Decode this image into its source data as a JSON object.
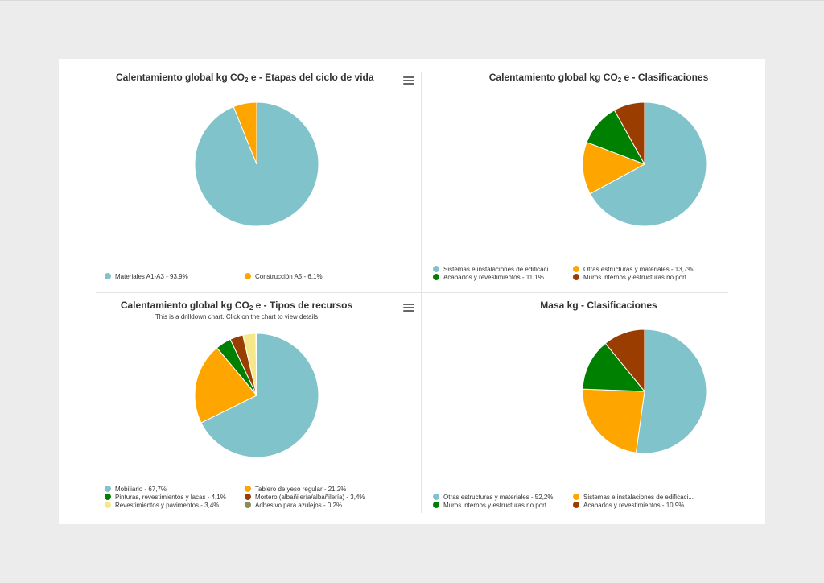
{
  "colors": {
    "teal": "#80c3ca",
    "orange": "#ffa500",
    "green": "#008000",
    "brown": "#a0400b",
    "yellow": "#f5e88a",
    "olive": "#8c8c55"
  },
  "chart_data": [
    {
      "type": "pie",
      "title_main": "Calentamiento global kg CO",
      "title_sub": "2",
      "title_rest": " e - Etapas del ciclo de vida",
      "slices": [
        {
          "label": "Materiales A1-A3 - 93,9%",
          "value": 93.9,
          "color": "#80c3ca"
        },
        {
          "label": "Construcción A5 - 6,1%",
          "value": 6.1,
          "color": "#ffa500"
        }
      ],
      "legend": "bottom"
    },
    {
      "type": "pie",
      "title_main": "Calentamiento global kg CO",
      "title_sub": "2",
      "title_rest": " e - Clasificaciones",
      "slices": [
        {
          "label": "Sistemas e instalaciones de edificaci...",
          "value": 67.1,
          "color": "#80c3ca"
        },
        {
          "label": "Otras estructuras y materiales - 13,7%",
          "value": 13.7,
          "color": "#ffa500"
        },
        {
          "label": "Acabados y revestimientos - 11,1%",
          "value": 11.1,
          "color": "#008000"
        },
        {
          "label": "Muros internos y estructuras no port...",
          "value": 8.1,
          "color": "#993d00"
        }
      ],
      "legend": "bottom"
    },
    {
      "type": "pie",
      "title_main": "Calentamiento global kg CO",
      "title_sub": "2",
      "title_rest": " e - Tipos de recursos",
      "subtitle": "This is a drilldown chart. Click on the chart to view details",
      "slices": [
        {
          "label": "Mobiliario - 67,7%",
          "value": 67.7,
          "color": "#80c3ca"
        },
        {
          "label": "Tablero de yeso regular - 21,2%",
          "value": 21.2,
          "color": "#ffa500"
        },
        {
          "label": "Pinturas, revestimientos y lacas - 4,1%",
          "value": 4.1,
          "color": "#008000"
        },
        {
          "label": "Mortero (albañilería/albañilería) - 3,4%",
          "value": 3.4,
          "color": "#993d00"
        },
        {
          "label": "Revestimientos y pavimentos - 3,4%",
          "value": 3.4,
          "color": "#f5e88a"
        },
        {
          "label": "Adhesivo para azulejos - 0,2%",
          "value": 0.2,
          "color": "#8c8c55"
        }
      ],
      "legend": "bottom"
    },
    {
      "type": "pie",
      "title_main": "Masa kg - Clasificaciones",
      "title_sub": "",
      "title_rest": "",
      "slices": [
        {
          "label": "Otras estructuras y materiales - 52,2%",
          "value": 52.2,
          "color": "#80c3ca"
        },
        {
          "label": "Sistemas e instalaciones de edificaci...",
          "value": 23.4,
          "color": "#ffa500"
        },
        {
          "label": "Muros internos y estructuras no port...",
          "value": 13.5,
          "color": "#008000"
        },
        {
          "label": "Acabados y revestimientos - 10,9%",
          "value": 10.9,
          "color": "#993d00"
        }
      ],
      "legend": "bottom"
    }
  ]
}
